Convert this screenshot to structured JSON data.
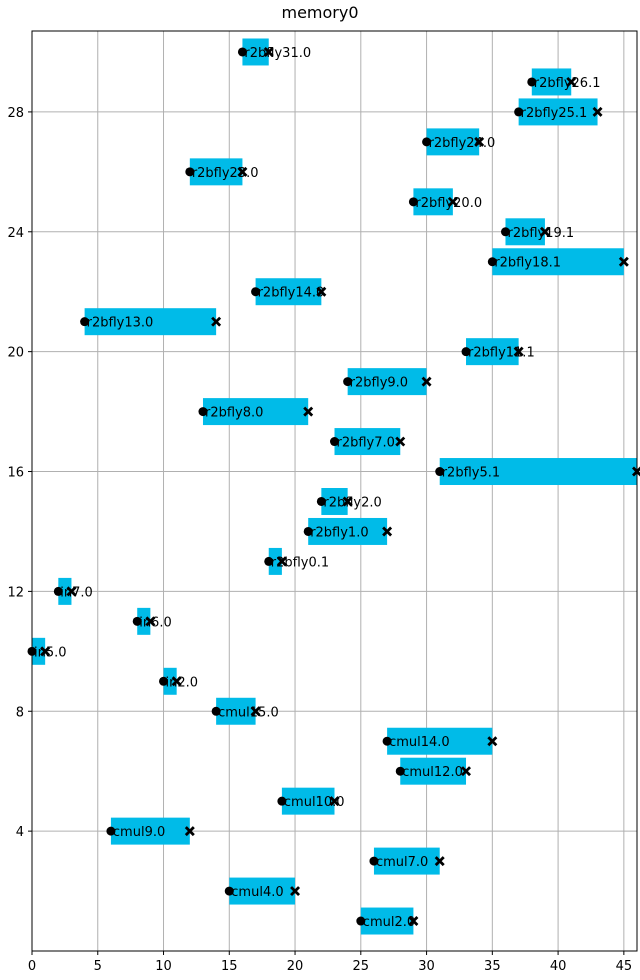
{
  "chart_data": {
    "type": "bar",
    "orientation": "horizontal-interval",
    "title": "memory0",
    "xlabel": "",
    "ylabel": "",
    "xlim": [
      0,
      46
    ],
    "ylim": [
      0,
      30.7
    ],
    "xticks": [
      0,
      5,
      10,
      15,
      20,
      25,
      30,
      35,
      40,
      45
    ],
    "yticks": [
      4,
      8,
      12,
      16,
      20,
      24,
      28
    ],
    "grid": true,
    "legend": "none",
    "colors": {
      "bar": "#00bbe8",
      "marker": "#000000",
      "grid": "#b0b0b0"
    },
    "bars": [
      {
        "label": "r2bfly31.0",
        "y": 30,
        "start": 16,
        "end": 18
      },
      {
        "label": "r2bfly26.1",
        "y": 29,
        "start": 38,
        "end": 41
      },
      {
        "label": "r2bfly25.1",
        "y": 28,
        "start": 37,
        "end": 43
      },
      {
        "label": "r2bfly24.0",
        "y": 27,
        "start": 30,
        "end": 34
      },
      {
        "label": "r2bfly23.0",
        "y": 26,
        "start": 12,
        "end": 16
      },
      {
        "label": "r2bfly20.0",
        "y": 25,
        "start": 29,
        "end": 32
      },
      {
        "label": "r2bfly19.1",
        "y": 24,
        "start": 36,
        "end": 39
      },
      {
        "label": "r2bfly18.1",
        "y": 23,
        "start": 35,
        "end": 45
      },
      {
        "label": "r2bfly14.0",
        "y": 22,
        "start": 17,
        "end": 22
      },
      {
        "label": "r2bfly13.0",
        "y": 21,
        "start": 4,
        "end": 14
      },
      {
        "label": "r2bfly11.1",
        "y": 20,
        "start": 33,
        "end": 37
      },
      {
        "label": "r2bfly9.0",
        "y": 19,
        "start": 24,
        "end": 30
      },
      {
        "label": "r2bfly8.0",
        "y": 18,
        "start": 13,
        "end": 21
      },
      {
        "label": "r2bfly7.0",
        "y": 17,
        "start": 23,
        "end": 28
      },
      {
        "label": "r2bfly5.1",
        "y": 16,
        "start": 31,
        "end": 46
      },
      {
        "label": "r2bfly2.0",
        "y": 15,
        "start": 22,
        "end": 24
      },
      {
        "label": "r2bfly1.0",
        "y": 14,
        "start": 21,
        "end": 27
      },
      {
        "label": "r2bfly0.1",
        "y": 13,
        "start": 18,
        "end": 19
      },
      {
        "label": "in7.0",
        "y": 12,
        "start": 2,
        "end": 3
      },
      {
        "label": "in6.0",
        "y": 11,
        "start": 8,
        "end": 9
      },
      {
        "label": "in5.0",
        "y": 10,
        "start": 0,
        "end": 1
      },
      {
        "label": "in2.0",
        "y": 9,
        "start": 10,
        "end": 11
      },
      {
        "label": "cmul15.0",
        "y": 8,
        "start": 14,
        "end": 17
      },
      {
        "label": "cmul14.0",
        "y": 7,
        "start": 27,
        "end": 35
      },
      {
        "label": "cmul12.0",
        "y": 6,
        "start": 28,
        "end": 33
      },
      {
        "label": "cmul10.0",
        "y": 5,
        "start": 19,
        "end": 23
      },
      {
        "label": "cmul9.0",
        "y": 4,
        "start": 6,
        "end": 12
      },
      {
        "label": "cmul7.0",
        "y": 3,
        "start": 26,
        "end": 31
      },
      {
        "label": "cmul4.0",
        "y": 2,
        "start": 15,
        "end": 20
      },
      {
        "label": "cmul2.0",
        "y": 1,
        "start": 25,
        "end": 29
      }
    ]
  }
}
